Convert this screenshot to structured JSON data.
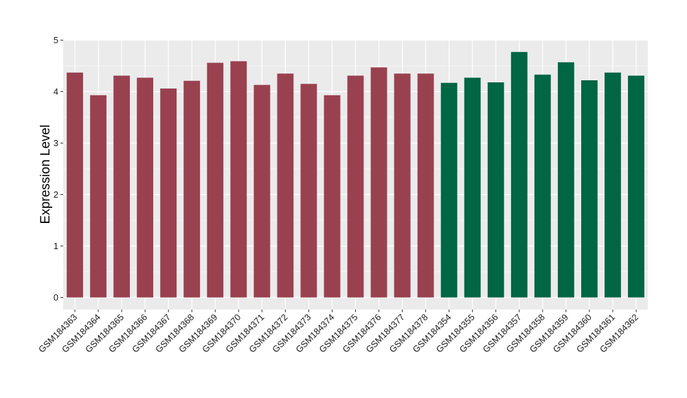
{
  "chart_data": {
    "type": "bar",
    "title": "",
    "xlabel": "",
    "ylabel": "Expression Level",
    "ylim": [
      0,
      5
    ],
    "yticks": [
      0,
      1,
      2,
      3,
      4,
      5
    ],
    "grid": true,
    "legend": "none",
    "colors": {
      "panel": "#ebebeb",
      "grid": "#ffffff",
      "group1": "#9a4150",
      "group2": "#006644"
    },
    "categories": [
      "GSM184363",
      "GSM184364",
      "GSM184365",
      "GSM184366",
      "GSM184367",
      "GSM184368",
      "GSM184369",
      "GSM184370",
      "GSM184371",
      "GSM184372",
      "GSM184373",
      "GSM184374",
      "GSM184375",
      "GSM184376",
      "GSM184377",
      "GSM184378",
      "GSM184354",
      "GSM184355",
      "GSM184356",
      "GSM184357",
      "GSM184358",
      "GSM184359",
      "GSM184360",
      "GSM184361",
      "GSM184362"
    ],
    "values": [
      4.37,
      3.93,
      4.31,
      4.27,
      4.06,
      4.21,
      4.56,
      4.59,
      4.13,
      4.35,
      4.15,
      3.93,
      4.31,
      4.47,
      4.35,
      4.35,
      4.17,
      4.27,
      4.18,
      4.77,
      4.33,
      4.57,
      4.22,
      4.37,
      4.31
    ],
    "bar_groups": [
      "group1",
      "group1",
      "group1",
      "group1",
      "group1",
      "group1",
      "group1",
      "group1",
      "group1",
      "group1",
      "group1",
      "group1",
      "group1",
      "group1",
      "group1",
      "group1",
      "group2",
      "group2",
      "group2",
      "group2",
      "group2",
      "group2",
      "group2",
      "group2",
      "group2"
    ]
  }
}
